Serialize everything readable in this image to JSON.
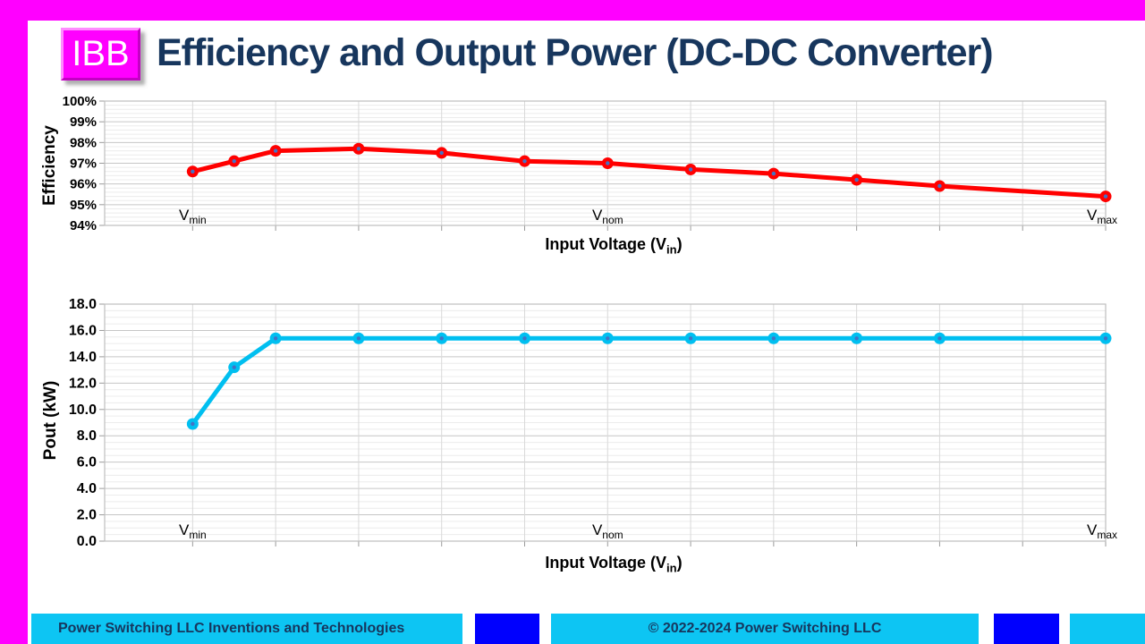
{
  "slide": {
    "logo_text": "IBB",
    "title": "Efficiency and Output Power (DC-DC Converter)"
  },
  "colors": {
    "frame_magenta": "#FF00FF",
    "title_navy": "#17365D",
    "efficiency_series_red": "#FF0000",
    "pout_series_cyan": "#00BFF0",
    "marker_center_dot": "#4472C4",
    "footer_cyan": "#0DC5F3",
    "footer_blue": "#0000FE",
    "footer_text_navy": "#17365D"
  },
  "chart_data": [
    {
      "name": "efficiency-vs-input-voltage",
      "type": "line",
      "title": "",
      "ylabel": "Efficiency",
      "xlabel_parts": {
        "pre": "Input Voltage (V",
        "sub": "in",
        "post": ")"
      },
      "ylim": [
        94,
        100
      ],
      "y_major_unit": 1,
      "y_minor_unit": 0.2,
      "y_ticks": [
        {
          "label": "100%",
          "value": 100
        },
        {
          "label": "99%",
          "value": 99
        },
        {
          "label": "98%",
          "value": 98
        },
        {
          "label": "97%",
          "value": 97
        },
        {
          "label": "96%",
          "value": 96
        },
        {
          "label": "95%",
          "value": 95
        },
        {
          "label": "94%",
          "value": 94
        }
      ],
      "xlim": [
        -1.06,
        11
      ],
      "x_gridlines": [
        0,
        1,
        2,
        3,
        4,
        5,
        6,
        7,
        8,
        9,
        10,
        11
      ],
      "x": [
        0,
        0.5,
        1,
        2,
        3,
        4,
        5,
        6,
        7,
        8,
        9,
        11
      ],
      "values": [
        96.6,
        97.1,
        97.6,
        97.7,
        97.5,
        97.1,
        97.0,
        96.7,
        96.5,
        96.2,
        95.9,
        95.4
      ],
      "unit": "%",
      "color": "#FF0000",
      "point_labels": [
        {
          "at": 0,
          "text": "V",
          "sub": "min"
        },
        {
          "at": 5,
          "text": "V",
          "sub": "nom"
        },
        {
          "at": 11,
          "text": "V",
          "sub": "max"
        }
      ],
      "legend": null,
      "grid": "major+minor"
    },
    {
      "name": "output-power-vs-input-voltage",
      "type": "line",
      "title": "",
      "ylabel": "Pout (kW)",
      "xlabel_parts": {
        "pre": "Input Voltage (V",
        "sub": "in",
        "post": ")"
      },
      "ylim": [
        0,
        18
      ],
      "y_major_unit": 2,
      "y_minor_unit": 0.5,
      "y_ticks": [
        {
          "label": "18.0",
          "value": 18
        },
        {
          "label": "16.0",
          "value": 16
        },
        {
          "label": "14.0",
          "value": 14
        },
        {
          "label": "12.0",
          "value": 12
        },
        {
          "label": "10.0",
          "value": 10
        },
        {
          "label": "8.0",
          "value": 8
        },
        {
          "label": "6.0",
          "value": 6
        },
        {
          "label": "4.0",
          "value": 4
        },
        {
          "label": "2.0",
          "value": 2
        },
        {
          "label": "0.0",
          "value": 0
        }
      ],
      "xlim": [
        -1.06,
        11
      ],
      "x_gridlines": [
        0,
        1,
        2,
        3,
        4,
        5,
        6,
        7,
        8,
        9,
        10,
        11
      ],
      "x": [
        0,
        0.5,
        1,
        2,
        3,
        4,
        5,
        6,
        7,
        8,
        9,
        11
      ],
      "values": [
        8.9,
        13.2,
        15.4,
        15.4,
        15.4,
        15.4,
        15.4,
        15.4,
        15.4,
        15.4,
        15.4,
        15.4
      ],
      "unit": "kW",
      "color": "#00BFF0",
      "point_labels": [
        {
          "at": 0,
          "text": "V",
          "sub": "min"
        },
        {
          "at": 5,
          "text": "V",
          "sub": "nom"
        },
        {
          "at": 11,
          "text": "V",
          "sub": "max"
        }
      ],
      "legend": null,
      "grid": "major+minor"
    }
  ],
  "footer": {
    "left_text": "Power Switching LLC Inventions and Technologies",
    "copyright_text": "© 2022-2024 Power Switching LLC"
  }
}
